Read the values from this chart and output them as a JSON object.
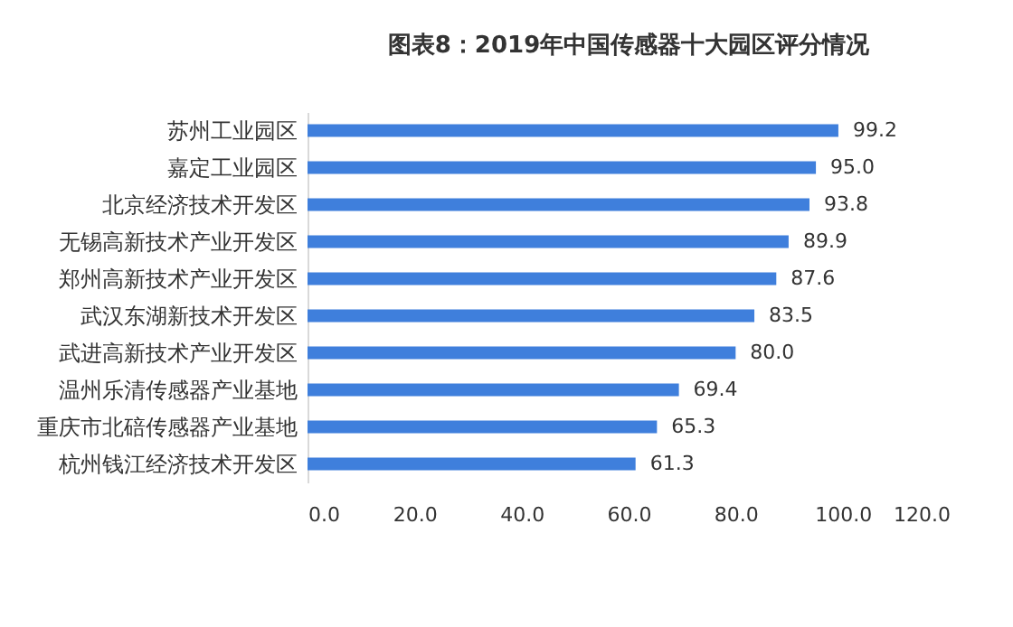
{
  "chart_data": {
    "type": "bar",
    "orientation": "horizontal",
    "title": "图表8：2019年中国传感器十大园区评分情况",
    "categories": [
      "苏州工业园区",
      "嘉定工业园区",
      "北京经济技术开发区",
      "无锡高新技术产业开发区",
      "郑州高新技术产业开发区",
      "武汉东湖新技术开发区",
      "武进高新技术产业开发区",
      "温州乐清传感器产业基地",
      "重庆市北碚传感器产业基地",
      "杭州钱江经济技术开发区"
    ],
    "values": [
      99.2,
      95.0,
      93.8,
      89.9,
      87.6,
      83.5,
      80.0,
      69.4,
      65.3,
      61.3
    ],
    "value_labels": [
      "99.2",
      "95.0",
      "93.8",
      "89.9",
      "87.6",
      "83.5",
      "80.0",
      "69.4",
      "65.3",
      "61.3"
    ],
    "color": "#3f7fdc",
    "xlim": [
      0,
      120
    ],
    "xticks": [
      {
        "value": 0,
        "label": "0.0"
      },
      {
        "value": 20,
        "label": "20.0"
      },
      {
        "value": 40,
        "label": "40.0"
      },
      {
        "value": 60,
        "label": "60.0"
      },
      {
        "value": 80,
        "label": "80.0"
      },
      {
        "value": 100,
        "label": "100.0"
      },
      {
        "value": 120,
        "label": "120.0"
      }
    ],
    "grid": false
  }
}
